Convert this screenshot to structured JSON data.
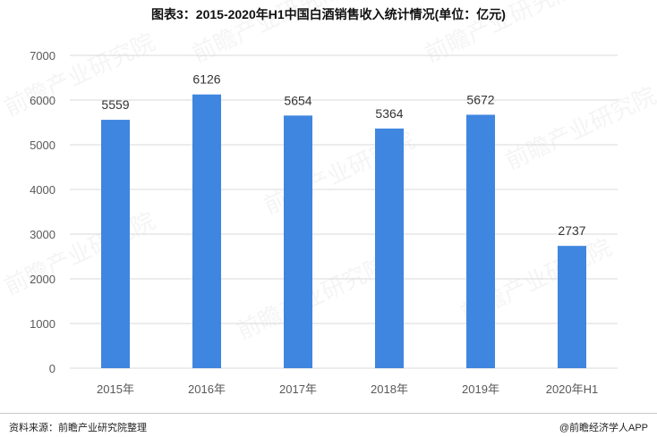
{
  "header": {
    "title": "图表3：2015-2020年H1中国白酒销售收入统计情况(单位：亿元)"
  },
  "footer": {
    "source": "资料来源：前瞻产业研究院整理",
    "credit": "@前瞻经济学人APP"
  },
  "watermark": {
    "text": "前瞻产业研究院"
  },
  "colors": {
    "bar": "#3f86e0",
    "grid": "#d9d9d9",
    "axis_text": "#595959"
  },
  "chart_data": {
    "type": "bar",
    "title": "图表3：2015-2020年H1中国白酒销售收入统计情况(单位：亿元)",
    "categories": [
      "2015年",
      "2016年",
      "2017年",
      "2018年",
      "2019年",
      "2020年H1"
    ],
    "values": [
      5559,
      6126,
      5654,
      5364,
      5672,
      2737
    ],
    "yticks": [
      "0",
      "1000",
      "2000",
      "3000",
      "4000",
      "5000",
      "6000",
      "7000"
    ],
    "ylim": [
      0,
      7000
    ],
    "grid": true,
    "legend": "none"
  }
}
